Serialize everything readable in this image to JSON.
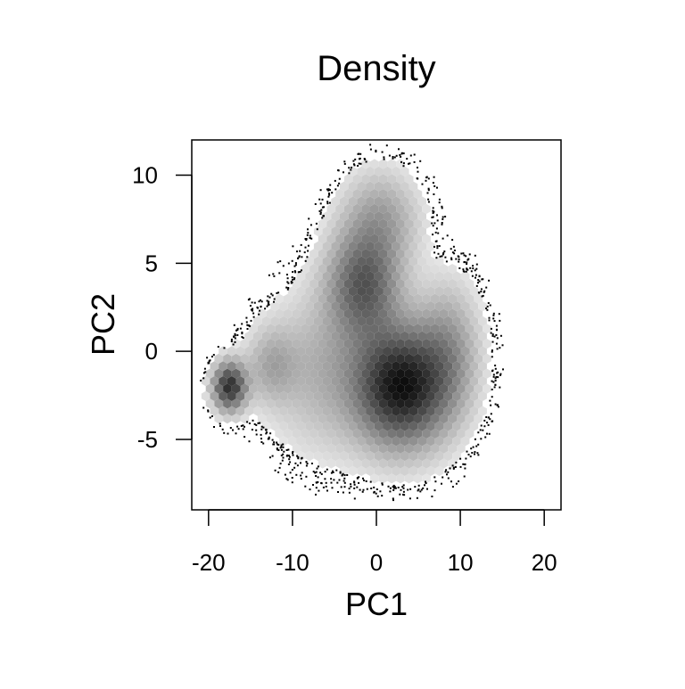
{
  "chart_data": {
    "type": "heatmap",
    "subtype": "hexbin-density-with-outlier-points",
    "title": "Density",
    "xlabel": "PC1",
    "ylabel": "PC2",
    "xlim": [
      -22,
      22
    ],
    "ylim": [
      -9,
      12
    ],
    "x_ticks": [
      -20,
      -10,
      0,
      10,
      20
    ],
    "x_tick_labels": [
      "-20",
      "-10",
      "0",
      "10",
      "20"
    ],
    "y_ticks": [
      -5,
      0,
      5,
      10
    ],
    "y_tick_labels": [
      "-5",
      "0",
      "5",
      "10"
    ],
    "grid": false,
    "legend": "none",
    "colors": {
      "low_density": "#e6e6e6",
      "high_density": "#0d0d0d",
      "points": "#000000",
      "frame": "#000000"
    },
    "density_peaks": [
      {
        "x": 3,
        "y": -2,
        "sx": 3.6,
        "sy": 2.2,
        "weight": 1.0
      },
      {
        "x": -1.5,
        "y": 3.8,
        "sx": 2.8,
        "sy": 2.0,
        "weight": 0.6
      },
      {
        "x": -17.5,
        "y": -2.0,
        "sx": 1.3,
        "sy": 0.9,
        "weight": 0.85
      },
      {
        "x": 0.5,
        "y": 7.5,
        "sx": 3.0,
        "sy": 1.8,
        "weight": 0.28
      },
      {
        "x": -6,
        "y": -1,
        "sx": 4.5,
        "sy": 3.0,
        "weight": 0.22
      },
      {
        "x": 8.5,
        "y": 0,
        "sx": 2.5,
        "sy": 2.5,
        "weight": 0.3
      },
      {
        "x": -12.5,
        "y": -0.8,
        "sx": 2.0,
        "sy": 1.4,
        "weight": 0.22
      }
    ],
    "outlier_band": {
      "inner_threshold": 0.045,
      "outer_threshold": 0.012,
      "point_count": 700
    }
  }
}
